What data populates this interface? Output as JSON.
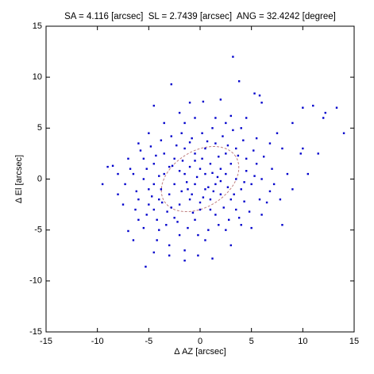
{
  "chart_data": {
    "type": "scatter",
    "title": "SA = 4.116 [arcsec]  SL = 2.7439 [arcsec]  ANG = 32.4242 [degree]",
    "x_label": "Δ AZ [arcsec]",
    "y_label": "Δ El [arcsec]",
    "color": "#0000cc",
    "ellipse_color": "#c08080",
    "ellipse": {
      "center": [
        0,
        0
      ],
      "sa": 4.116,
      "sl": 2.7439,
      "angle": 32.4242
    },
    "xlim": [
      -15,
      15
    ],
    "ylim": [
      -15,
      15
    ],
    "xticks": [
      -15,
      -10,
      -5,
      0,
      5,
      10,
      15
    ],
    "yticks": [
      -15,
      -10,
      -5,
      0,
      5,
      10,
      15
    ],
    "grid": false,
    "x": [
      3.2,
      -2.8,
      3.8,
      5.3,
      5.8,
      -4.5,
      0.3,
      -1.0,
      2.0,
      6.0,
      13.3,
      14.0,
      12.2,
      12.0,
      11.0,
      10.0,
      10.0,
      9.8,
      8.0,
      6.5,
      8.5,
      7.0,
      9.0,
      7.5,
      6.8,
      5.5,
      4.5,
      3.0,
      -0.5,
      -1.5,
      -3.5,
      -5.0,
      -6.0,
      -7.0,
      -9.0,
      -8.5,
      -8.0,
      -7.5,
      -7.0,
      -6.0,
      -5.3,
      -4.5,
      -3.0,
      -1.5,
      -0.2,
      1.2,
      0.5,
      -2.0,
      -4.0,
      -5.5,
      2.5,
      4.0,
      5.0,
      6.0,
      3.5,
      1.5,
      -0.5,
      -2.5,
      -4.5,
      -6.0,
      -5.0,
      -4.0,
      -3.0,
      -2.0,
      -1.0,
      0.0,
      1.0,
      2.0,
      3.0,
      4.0,
      5.0,
      6.0,
      5.5,
      4.5,
      3.5,
      2.5,
      1.5,
      0.5,
      -0.5,
      -1.5,
      -2.5,
      -3.5,
      -4.5,
      -5.5,
      -6.5,
      -5.5,
      -4.5,
      -3.5,
      -2.5,
      -1.5,
      -0.5,
      0.5,
      1.5,
      2.5,
      3.5,
      4.5,
      3.0,
      2.0,
      1.0,
      0.0,
      -1.0,
      -2.0,
      -3.0,
      -4.0,
      -5.0,
      -3.8,
      -2.8,
      -1.8,
      -0.8,
      0.3,
      1.3,
      2.3,
      3.3,
      4.3,
      2.8,
      1.8,
      0.8,
      -0.2,
      -1.2,
      -2.2,
      -3.2,
      -4.2,
      -5.2,
      -6.2,
      -6.8,
      -5.8,
      -4.8,
      -3.8,
      -2.8,
      -1.8,
      -0.8,
      0.2,
      1.2,
      2.2,
      3.2,
      4.2,
      5.2,
      6.2,
      7.2,
      6.8,
      5.8,
      4.8,
      3.8,
      0.2,
      -0.3,
      0.8,
      -1.3,
      1.8,
      -2.3,
      2.7,
      -3.7,
      3.7,
      -0.7,
      0.7,
      -4.3,
      4.3,
      -1.7,
      1.7,
      -2.7,
      2.7,
      -5.2,
      -4.7,
      -6.3,
      -7.3,
      -3.3,
      0.0,
      -1.0,
      1.0,
      5.3,
      4.0,
      -2.0,
      1.5,
      2.5,
      -3.0,
      -4.2,
      3.0,
      -1.5,
      -6.5,
      9.0,
      10.5,
      11.5,
      8.0,
      7.8,
      -8.0,
      -9.5,
      0.5,
      -0.5,
      1.2,
      -1.2,
      2.0
    ],
    "values": [
      12.0,
      9.3,
      9.6,
      8.4,
      8.2,
      7.2,
      7.6,
      7.5,
      7.8,
      7.5,
      7.0,
      4.5,
      6.5,
      6.0,
      7.2,
      7.0,
      3.0,
      2.5,
      -4.5,
      -2.3,
      0.5,
      1.0,
      5.5,
      4.5,
      3.5,
      4.0,
      6.0,
      6.2,
      6.0,
      5.5,
      5.5,
      4.5,
      3.5,
      2.0,
      1.2,
      1.3,
      -1.5,
      -2.5,
      -5.1,
      -4.0,
      -8.6,
      -7.2,
      -6.5,
      -7.0,
      -7.5,
      -7.8,
      -6.0,
      -5.5,
      -5.0,
      -4.8,
      -5.0,
      -4.5,
      -4.8,
      -3.5,
      -3.0,
      -3.5,
      -4.0,
      -3.8,
      -3.0,
      -2.0,
      -1.0,
      -2.0,
      -1.5,
      -2.5,
      -2.0,
      -3.0,
      -2.0,
      -1.5,
      -2.0,
      -1.0,
      -0.5,
      0.0,
      1.5,
      2.0,
      3.0,
      2.5,
      3.5,
      3.0,
      2.5,
      3.0,
      2.0,
      2.5,
      1.5,
      2.0,
      0.5,
      0.0,
      -0.5,
      0.5,
      -0.5,
      0.5,
      -0.5,
      0.5,
      -0.5,
      0.5,
      0.0,
      0.8,
      1.5,
      1.0,
      1.5,
      1.0,
      1.2,
      0.8,
      1.2,
      0.3,
      -2.5,
      -1.0,
      -2.8,
      -1.2,
      -1.5,
      -1.8,
      -1.2,
      -2.8,
      -1.5,
      -2.2,
      -4.0,
      -4.5,
      -5.0,
      -5.5,
      -4.8,
      -4.2,
      -3.2,
      -4.0,
      -3.5,
      -1.2,
      1.0,
      2.8,
      3.2,
      3.8,
      4.2,
      4.5,
      4.0,
      4.5,
      5.0,
      4.2,
      4.8,
      3.8,
      2.8,
      2.2,
      -0.5,
      -1.2,
      -2.0,
      -3.2,
      -3.8,
      2.0,
      0.2,
      -0.8,
      -0.3,
      2.2,
      3.3,
      -0.8,
      -2.3,
      2.3,
      -3.3,
      3.7,
      2.3,
      -0.3,
      1.8,
      0.2,
      1.3,
      3.3,
      1.0,
      -1.7,
      -3.0,
      -0.5,
      -4.5,
      -2.3,
      3.6,
      -3.0,
      0.3,
      5.0,
      6.5,
      6.0,
      5.5,
      -7.5,
      -6.0,
      -6.5,
      -8.0,
      -6.0,
      -1.0,
      0.5,
      2.5,
      3.0,
      -2.0,
      0.5,
      -0.5,
      -1.0,
      1.8,
      0.6,
      -1.0,
      -0.2
    ]
  }
}
